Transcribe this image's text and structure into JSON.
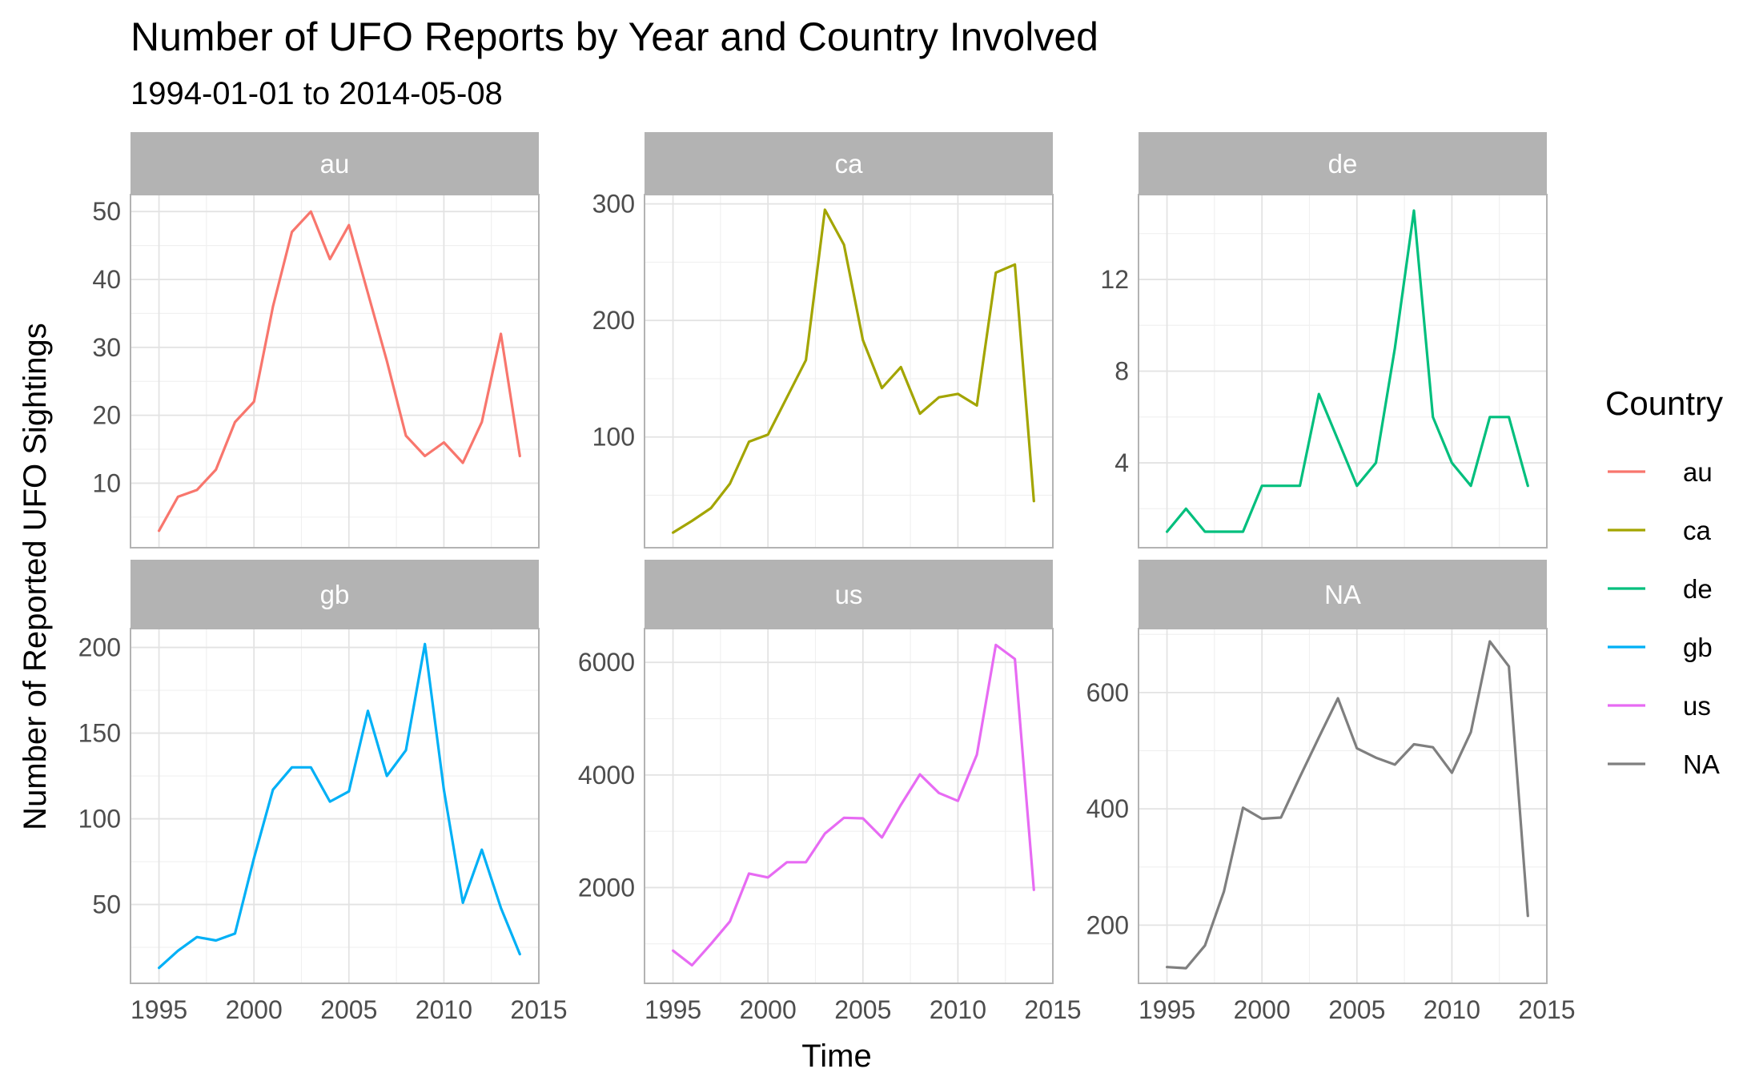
{
  "chart_data": {
    "type": "line",
    "title": "Number of UFO Reports by Year and Country Involved",
    "subtitle": "1994-01-01 to 2014-05-08",
    "xlabel": "Time",
    "ylabel": "Number of Reported UFO Sightings",
    "x_ticks": [
      1995,
      2000,
      2005,
      2010,
      2015
    ],
    "xlim": [
      1993.5,
      2015
    ],
    "grid": true,
    "legend": {
      "title": "Country",
      "placement": "right",
      "entries": [
        {
          "label": "au",
          "color": "#F8766D"
        },
        {
          "label": "ca",
          "color": "#A3A500"
        },
        {
          "label": "de",
          "color": "#00BF7D"
        },
        {
          "label": "gb",
          "color": "#00B0F6"
        },
        {
          "label": "us",
          "color": "#E76BF3"
        },
        {
          "label": "NA",
          "color": "#7F7F7F"
        }
      ]
    },
    "x": [
      1995,
      1996,
      1997,
      1998,
      1999,
      2000,
      2001,
      2002,
      2003,
      2004,
      2005,
      2006,
      2007,
      2008,
      2009,
      2010,
      2011,
      2012,
      2013,
      2014
    ],
    "facets": [
      {
        "name": "au",
        "color": "#F8766D",
        "ylim": [
          0.5,
          52.5
        ],
        "y_ticks": [
          10,
          20,
          30,
          40,
          50
        ],
        "values": [
          3,
          8,
          9,
          12,
          19,
          22,
          36,
          47,
          50,
          43,
          48,
          38,
          28,
          17,
          14,
          16,
          13,
          19,
          32,
          14
        ]
      },
      {
        "name": "ca",
        "color": "#A3A500",
        "ylim": [
          5,
          308
        ],
        "y_ticks": [
          100,
          200,
          300
        ],
        "values": [
          18,
          28,
          39,
          60,
          96,
          102,
          134,
          166,
          295,
          265,
          183,
          142,
          160,
          120,
          134,
          137,
          127,
          241,
          248,
          45
        ]
      },
      {
        "name": "de",
        "color": "#00BF7D",
        "ylim": [
          0.3,
          15.7
        ],
        "y_ticks": [
          4,
          8,
          12
        ],
        "values": [
          1,
          2,
          1,
          1,
          1,
          3,
          3,
          3,
          7,
          5,
          3,
          4,
          9,
          15,
          6,
          4,
          3,
          6,
          6,
          3
        ]
      },
      {
        "name": "gb",
        "color": "#00B0F6",
        "ylim": [
          4,
          211
        ],
        "y_ticks": [
          50,
          100,
          150,
          200
        ],
        "values": [
          13,
          23,
          31,
          29,
          33,
          77,
          117,
          130,
          130,
          110,
          116,
          163,
          125,
          140,
          202,
          117,
          51,
          82,
          48,
          21
        ]
      },
      {
        "name": "us",
        "color": "#E76BF3",
        "ylim": [
          300,
          6600
        ],
        "y_ticks": [
          2000,
          4000,
          6000
        ],
        "values": [
          880,
          620,
          1000,
          1400,
          2250,
          2180,
          2450,
          2450,
          2960,
          3240,
          3230,
          2890,
          3470,
          4010,
          3680,
          3540,
          4360,
          6310,
          6060,
          1960
        ]
      },
      {
        "name": "NA",
        "color": "#7F7F7F",
        "ylim": [
          100,
          710
        ],
        "y_ticks": [
          200,
          400,
          600
        ],
        "values": [
          128,
          126,
          165,
          258,
          402,
          383,
          385,
          455,
          523,
          590,
          504,
          488,
          476,
          511,
          506,
          462,
          532,
          688,
          645,
          216
        ]
      }
    ]
  }
}
